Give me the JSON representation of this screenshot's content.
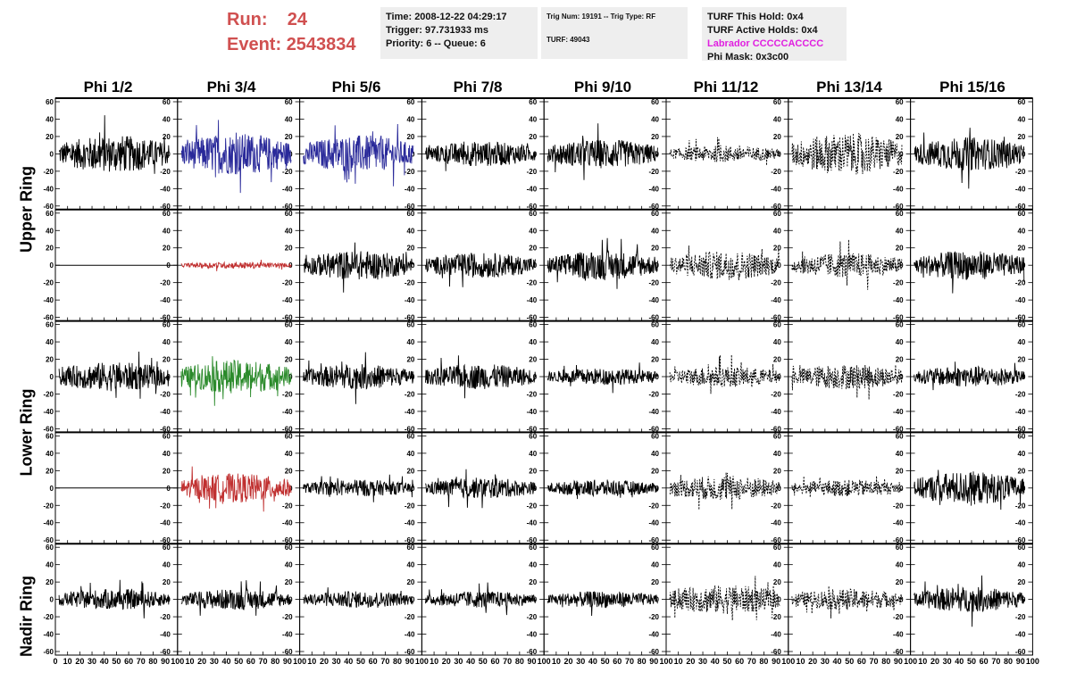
{
  "run": {
    "run_label": "Run:",
    "run_value": "24",
    "event_label": "Event:",
    "event_value": "2543834"
  },
  "info1": {
    "time": "Time: 2008-12-22 04:29:17",
    "trigger": "Trigger: 97.731933 ms",
    "priority": "Priority: 6 -- Queue: 6"
  },
  "info2": {
    "trig": "Trig Num: 19191 -- Trig Type: RF",
    "turf": "TURF: 49043"
  },
  "info3": {
    "hold": "TURF This Hold: 0x4",
    "active": "TURF Active Holds: 0x4",
    "labrador": "Labrador CCCCCACCCC",
    "phimask": "Phi Mask: 0x3c00"
  },
  "colors": {
    "black": "#000000",
    "blue": "#2a2a9a",
    "red": "#c03030",
    "green": "#2a8a2a",
    "runinfo": "#d05050",
    "magenta": "#e020e0"
  },
  "chart_data": {
    "type": "line",
    "columns": [
      "Phi 1/2",
      "Phi 3/4",
      "Phi 5/6",
      "Phi 7/8",
      "Phi 9/10",
      "Phi 11/12",
      "Phi 13/14",
      "Phi 15/16"
    ],
    "row_labels": [
      "Upper Ring",
      "Lower Ring",
      "Nadir Ring"
    ],
    "xlim": [
      0,
      100
    ],
    "ylim": [
      -60,
      60
    ],
    "x_ticks": [
      0,
      10,
      20,
      30,
      40,
      50,
      60,
      70,
      80,
      90,
      100
    ],
    "y_ticks": [
      -60,
      -40,
      -20,
      0,
      20,
      40,
      60
    ],
    "x_tick_labels": [
      "0",
      "10",
      "20",
      "30",
      "40",
      "50",
      "60",
      "70",
      "80",
      "90",
      "100"
    ],
    "y_tick_labels": [
      "-60",
      "-40",
      "-20",
      "0",
      "20",
      "40",
      "60"
    ],
    "panels": [
      [
        {
          "style": "solid",
          "color": "black",
          "amp": 18
        },
        {
          "style": "solid",
          "color": "blue",
          "amp": 20
        },
        {
          "style": "solid",
          "color": "blue",
          "amp": 18
        },
        {
          "style": "solid",
          "color": "black",
          "amp": 12
        },
        {
          "style": "solid",
          "color": "black",
          "amp": 14
        },
        {
          "style": "dashed",
          "color": "black",
          "amp": 8
        },
        {
          "style": "dashed",
          "color": "black",
          "amp": 20
        },
        {
          "style": "solid",
          "color": "black",
          "amp": 16
        }
      ],
      [
        {
          "style": "flat",
          "color": "black",
          "amp": 0
        },
        {
          "style": "solid",
          "color": "red",
          "amp": 3
        },
        {
          "style": "solid",
          "color": "black",
          "amp": 14
        },
        {
          "style": "solid",
          "color": "black",
          "amp": 12
        },
        {
          "style": "solid",
          "color": "black",
          "amp": 14
        },
        {
          "style": "dashed",
          "color": "black",
          "amp": 14
        },
        {
          "style": "dashed",
          "color": "black",
          "amp": 12
        },
        {
          "style": "solid",
          "color": "black",
          "amp": 14
        }
      ],
      [
        {
          "style": "solid",
          "color": "black",
          "amp": 14
        },
        {
          "style": "solid",
          "color": "green",
          "amp": 16
        },
        {
          "style": "solid",
          "color": "black",
          "amp": 12
        },
        {
          "style": "solid",
          "color": "black",
          "amp": 12
        },
        {
          "style": "solid",
          "color": "black",
          "amp": 8
        },
        {
          "style": "dashed",
          "color": "black",
          "amp": 10
        },
        {
          "style": "dashed",
          "color": "black",
          "amp": 12
        },
        {
          "style": "solid",
          "color": "black",
          "amp": 10
        }
      ],
      [
        {
          "style": "flat",
          "color": "black",
          "amp": 0
        },
        {
          "style": "solid",
          "color": "red",
          "amp": 14
        },
        {
          "style": "solid",
          "color": "black",
          "amp": 8
        },
        {
          "style": "solid",
          "color": "black",
          "amp": 10
        },
        {
          "style": "solid",
          "color": "black",
          "amp": 8
        },
        {
          "style": "dashed",
          "color": "black",
          "amp": 12
        },
        {
          "style": "dashed",
          "color": "black",
          "amp": 8
        },
        {
          "style": "solid",
          "color": "black",
          "amp": 16
        }
      ],
      [
        {
          "style": "solid",
          "color": "black",
          "amp": 10
        },
        {
          "style": "solid",
          "color": "black",
          "amp": 10
        },
        {
          "style": "solid",
          "color": "black",
          "amp": 8
        },
        {
          "style": "solid",
          "color": "black",
          "amp": 8
        },
        {
          "style": "solid",
          "color": "black",
          "amp": 8
        },
        {
          "style": "dashed",
          "color": "black",
          "amp": 14
        },
        {
          "style": "dashed",
          "color": "black",
          "amp": 10
        },
        {
          "style": "solid",
          "color": "black",
          "amp": 12
        }
      ]
    ]
  }
}
